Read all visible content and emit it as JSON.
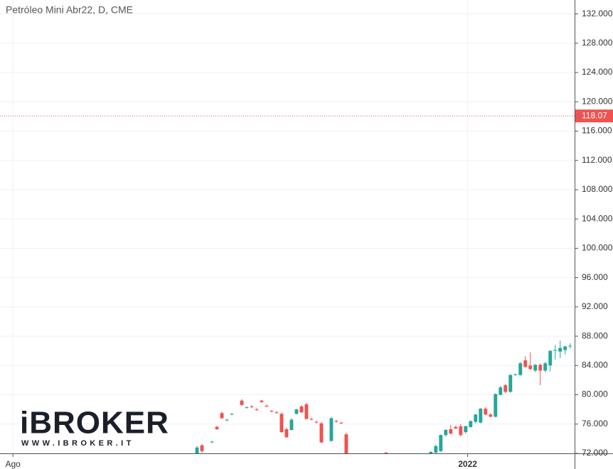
{
  "chart_data": {
    "type": "candlestick",
    "title": "Petróleo Mini Abr22, D, CME",
    "watermark": "iBROKER",
    "watermark_url": "WWW.IBROKER.IT",
    "up_color": "#26a69a",
    "down_color": "#ef5350",
    "grid": true,
    "x": [
      37,
      38,
      40,
      41,
      42,
      43,
      44,
      46,
      47,
      48,
      49,
      50,
      51,
      52,
      53,
      54,
      55,
      56,
      57,
      58,
      59,
      60,
      61,
      62,
      64,
      65,
      66,
      67,
      75,
      84,
      85,
      86,
      87,
      88,
      89,
      90,
      91,
      92,
      93,
      94,
      95,
      96,
      97,
      98,
      99,
      100,
      101,
      102,
      103,
      104,
      105,
      106,
      107,
      108,
      109,
      110,
      111,
      112
    ],
    "open": [
      71.6,
      73.1,
      73.5,
      75.6,
      77.5,
      76.5,
      77.3,
      79.2,
      78.2,
      78.4,
      78.0,
      79.2,
      78.5,
      77.8,
      77.6,
      77.4,
      75.3,
      75.2,
      77.4,
      78.4,
      78.7,
      76.7,
      76.3,
      76.1,
      73.7,
      76.4,
      76.2,
      74.6,
      72.1,
      71.5,
      72.1,
      72.3,
      74.5,
      75.3,
      75.6,
      75.7,
      74.9,
      75.6,
      76.3,
      76.2,
      78.1,
      77.3,
      77.0,
      80.0,
      81.3,
      80.4,
      82.7,
      82.7,
      84.7,
      84.0,
      83.3,
      84.1,
      83.3,
      84.0,
      86.0,
      85.9,
      86.1,
      86.6
    ],
    "high": [
      73.0,
      73.3,
      73.7,
      75.8,
      77.7,
      76.7,
      77.5,
      79.4,
      78.4,
      78.6,
      78.2,
      79.3,
      78.7,
      77.9,
      77.8,
      77.6,
      75.5,
      76.8,
      78.1,
      78.6,
      78.9,
      76.9,
      76.5,
      76.3,
      77.0,
      76.6,
      76.3,
      74.8,
      72.2,
      72.3,
      73.2,
      74.6,
      75.3,
      75.9,
      75.8,
      76.0,
      75.8,
      76.5,
      77.4,
      78.2,
      78.3,
      77.5,
      80.2,
      81.2,
      81.5,
      82.8,
      82.9,
      84.5,
      85.3,
      85.8,
      84.2,
      84.3,
      84.5,
      86.1,
      86.8,
      87.4,
      86.7,
      87.0
    ],
    "low": [
      71.3,
      72.1,
      73.4,
      75.2,
      76.7,
      76.4,
      77.2,
      78.5,
      78.1,
      78.2,
      77.8,
      78.9,
      78.3,
      77.6,
      77.4,
      74.8,
      74.1,
      75.1,
      77.3,
      77.5,
      76.6,
      76.5,
      76.1,
      73.4,
      73.6,
      76.2,
      76.0,
      71.2,
      71.9,
      71.3,
      71.9,
      72.2,
      74.3,
      74.6,
      75.3,
      74.3,
      74.7,
      75.5,
      76.1,
      76.1,
      77.2,
      76.9,
      76.9,
      79.9,
      80.2,
      80.3,
      82.6,
      82.6,
      83.7,
      83.4,
      83.1,
      81.3,
      83.1,
      83.2,
      84.8,
      85.0,
      85.5,
      86.3
    ],
    "close": [
      72.8,
      72.3,
      73.6,
      75.3,
      76.8,
      76.6,
      77.4,
      78.6,
      78.3,
      78.3,
      77.9,
      79.0,
      78.4,
      77.7,
      77.5,
      74.9,
      74.2,
      76.6,
      78.0,
      77.6,
      76.7,
      76.6,
      76.2,
      73.5,
      76.8,
      76.3,
      76.1,
      71.5,
      72.0,
      72.2,
      73.0,
      74.5,
      75.2,
      74.7,
      75.4,
      74.5,
      75.7,
      76.4,
      77.3,
      78.1,
      77.3,
      77.0,
      80.1,
      81.0,
      80.4,
      82.7,
      82.8,
      84.3,
      83.8,
      83.5,
      84.1,
      83.3,
      84.3,
      86.0,
      86.1,
      86.4,
      86.6,
      86.7
    ],
    "xlim": [
      -2.6,
      112.9
    ],
    "xticks": [
      {
        "value": 0,
        "label": "Ago"
      },
      {
        "value": 91.4,
        "label": "2022"
      }
    ],
    "ylim": [
      72,
      133.9
    ],
    "yticks": [
      {
        "value": 72,
        "label": "72.000"
      },
      {
        "value": 76,
        "label": "76.000"
      },
      {
        "value": 80,
        "label": "80.000"
      },
      {
        "value": 84,
        "label": "84.000"
      },
      {
        "value": 88,
        "label": "88.000"
      },
      {
        "value": 92,
        "label": "92.000"
      },
      {
        "value": 96,
        "label": "96.000"
      },
      {
        "value": 100,
        "label": "100.000"
      },
      {
        "value": 104,
        "label": "104.000"
      },
      {
        "value": 108,
        "label": "108.000"
      },
      {
        "value": 112,
        "label": "112.000"
      },
      {
        "value": 116,
        "label": "116.000"
      },
      {
        "value": 120,
        "label": "120.000"
      },
      {
        "value": 124,
        "label": "124.000"
      },
      {
        "value": 128,
        "label": "128.000"
      },
      {
        "value": 132,
        "label": "132.000"
      }
    ],
    "price_line": {
      "value": 118.07,
      "color": "#ef5350"
    }
  }
}
